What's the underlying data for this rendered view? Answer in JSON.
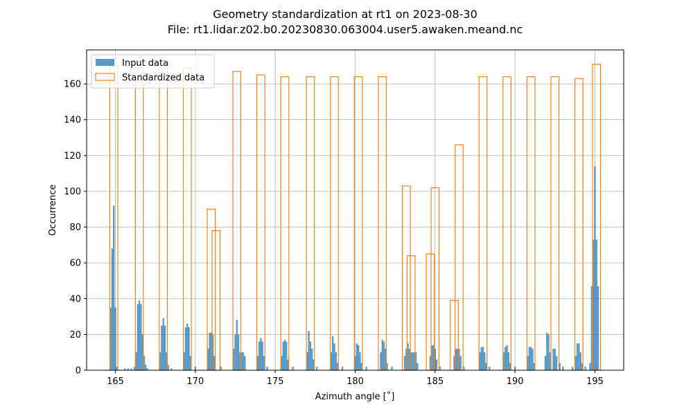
{
  "chart_data": {
    "type": "histogram",
    "title": "Geometry standardization at rt1 on 2023-08-30",
    "subtitle": "File: rt1.lidar.z02.b0.20230830.063004.user5.awaken.meand.nc",
    "xlabel": "Azimuth angle [˚]",
    "ylabel": "Occurrence",
    "xlim": [
      163.2,
      196.8
    ],
    "ylim": [
      0,
      179
    ],
    "xticks": [
      165,
      170,
      175,
      180,
      185,
      190,
      195
    ],
    "yticks": [
      0,
      20,
      40,
      60,
      80,
      100,
      120,
      140,
      160
    ],
    "grid": true,
    "legend_position": "top-left",
    "series": [
      {
        "name": "Input data",
        "style": "filled",
        "color": "#1f77b4",
        "bins": [
          {
            "x": 164.7,
            "y": 35
          },
          {
            "x": 164.8,
            "y": 68
          },
          {
            "x": 164.9,
            "y": 92
          },
          {
            "x": 165.0,
            "y": 35
          },
          {
            "x": 165.1,
            "y": 2
          },
          {
            "x": 165.6,
            "y": 1
          },
          {
            "x": 165.8,
            "y": 1
          },
          {
            "x": 166.0,
            "y": 1
          },
          {
            "x": 166.2,
            "y": 2
          },
          {
            "x": 166.3,
            "y": 10
          },
          {
            "x": 166.4,
            "y": 37
          },
          {
            "x": 166.5,
            "y": 39
          },
          {
            "x": 166.6,
            "y": 37
          },
          {
            "x": 166.7,
            "y": 20
          },
          {
            "x": 166.8,
            "y": 8
          },
          {
            "x": 166.9,
            "y": 3
          },
          {
            "x": 167.0,
            "y": 1
          },
          {
            "x": 167.8,
            "y": 10
          },
          {
            "x": 167.9,
            "y": 25
          },
          {
            "x": 168.0,
            "y": 29
          },
          {
            "x": 168.1,
            "y": 25
          },
          {
            "x": 168.2,
            "y": 10
          },
          {
            "x": 168.3,
            "y": 3
          },
          {
            "x": 168.5,
            "y": 1
          },
          {
            "x": 169.3,
            "y": 10
          },
          {
            "x": 169.4,
            "y": 24
          },
          {
            "x": 169.5,
            "y": 26
          },
          {
            "x": 169.6,
            "y": 24
          },
          {
            "x": 169.7,
            "y": 8
          },
          {
            "x": 170.0,
            "y": 2
          },
          {
            "x": 170.8,
            "y": 12
          },
          {
            "x": 170.9,
            "y": 21
          },
          {
            "x": 171.0,
            "y": 21
          },
          {
            "x": 171.1,
            "y": 20
          },
          {
            "x": 171.2,
            "y": 8
          },
          {
            "x": 171.6,
            "y": 2
          },
          {
            "x": 172.4,
            "y": 12
          },
          {
            "x": 172.5,
            "y": 20
          },
          {
            "x": 172.6,
            "y": 28
          },
          {
            "x": 172.7,
            "y": 20
          },
          {
            "x": 172.8,
            "y": 10
          },
          {
            "x": 172.9,
            "y": 10
          },
          {
            "x": 173.0,
            "y": 10
          },
          {
            "x": 173.1,
            "y": 8
          },
          {
            "x": 173.9,
            "y": 8
          },
          {
            "x": 174.0,
            "y": 16
          },
          {
            "x": 174.1,
            "y": 18
          },
          {
            "x": 174.2,
            "y": 16
          },
          {
            "x": 174.3,
            "y": 8
          },
          {
            "x": 174.5,
            "y": 2
          },
          {
            "x": 175.4,
            "y": 8
          },
          {
            "x": 175.5,
            "y": 16
          },
          {
            "x": 175.6,
            "y": 17
          },
          {
            "x": 175.7,
            "y": 16
          },
          {
            "x": 175.8,
            "y": 6
          },
          {
            "x": 176.1,
            "y": 2
          },
          {
            "x": 177.0,
            "y": 10
          },
          {
            "x": 177.1,
            "y": 22
          },
          {
            "x": 177.2,
            "y": 16
          },
          {
            "x": 177.3,
            "y": 12
          },
          {
            "x": 177.4,
            "y": 6
          },
          {
            "x": 177.6,
            "y": 2
          },
          {
            "x": 178.5,
            "y": 10
          },
          {
            "x": 178.6,
            "y": 19
          },
          {
            "x": 178.7,
            "y": 15
          },
          {
            "x": 178.8,
            "y": 10
          },
          {
            "x": 178.9,
            "y": 4
          },
          {
            "x": 179.2,
            "y": 2
          },
          {
            "x": 180.0,
            "y": 8
          },
          {
            "x": 180.1,
            "y": 15
          },
          {
            "x": 180.2,
            "y": 14
          },
          {
            "x": 180.3,
            "y": 10
          },
          {
            "x": 180.4,
            "y": 4
          },
          {
            "x": 180.7,
            "y": 2
          },
          {
            "x": 181.6,
            "y": 10
          },
          {
            "x": 181.7,
            "y": 17
          },
          {
            "x": 181.8,
            "y": 16
          },
          {
            "x": 181.9,
            "y": 12
          },
          {
            "x": 182.0,
            "y": 4
          },
          {
            "x": 182.3,
            "y": 2
          },
          {
            "x": 183.1,
            "y": 8
          },
          {
            "x": 183.2,
            "y": 12
          },
          {
            "x": 183.3,
            "y": 15
          },
          {
            "x": 183.4,
            "y": 12
          },
          {
            "x": 183.5,
            "y": 10
          },
          {
            "x": 183.6,
            "y": 10
          },
          {
            "x": 183.7,
            "y": 10
          },
          {
            "x": 183.8,
            "y": 10
          },
          {
            "x": 183.9,
            "y": 4
          },
          {
            "x": 184.7,
            "y": 8
          },
          {
            "x": 184.8,
            "y": 14
          },
          {
            "x": 184.9,
            "y": 14
          },
          {
            "x": 185.0,
            "y": 12
          },
          {
            "x": 185.1,
            "y": 6
          },
          {
            "x": 185.3,
            "y": 2
          },
          {
            "x": 186.2,
            "y": 8
          },
          {
            "x": 186.3,
            "y": 12
          },
          {
            "x": 186.4,
            "y": 12
          },
          {
            "x": 186.5,
            "y": 12
          },
          {
            "x": 186.6,
            "y": 8
          },
          {
            "x": 186.8,
            "y": 2
          },
          {
            "x": 187.8,
            "y": 10
          },
          {
            "x": 187.9,
            "y": 13
          },
          {
            "x": 188.0,
            "y": 13
          },
          {
            "x": 188.1,
            "y": 10
          },
          {
            "x": 188.2,
            "y": 4
          },
          {
            "x": 188.4,
            "y": 2
          },
          {
            "x": 189.3,
            "y": 10
          },
          {
            "x": 189.4,
            "y": 13
          },
          {
            "x": 189.5,
            "y": 14
          },
          {
            "x": 189.6,
            "y": 10
          },
          {
            "x": 189.7,
            "y": 4
          },
          {
            "x": 190.0,
            "y": 2
          },
          {
            "x": 190.8,
            "y": 8
          },
          {
            "x": 190.9,
            "y": 13
          },
          {
            "x": 191.0,
            "y": 13
          },
          {
            "x": 191.1,
            "y": 12
          },
          {
            "x": 191.2,
            "y": 4
          },
          {
            "x": 191.9,
            "y": 8
          },
          {
            "x": 192.0,
            "y": 21
          },
          {
            "x": 192.1,
            "y": 20
          },
          {
            "x": 192.2,
            "y": 10
          },
          {
            "x": 192.4,
            "y": 12
          },
          {
            "x": 192.5,
            "y": 12
          },
          {
            "x": 192.6,
            "y": 8
          },
          {
            "x": 192.8,
            "y": 4
          },
          {
            "x": 193.0,
            "y": 2
          },
          {
            "x": 193.6,
            "y": 2
          },
          {
            "x": 193.8,
            "y": 8
          },
          {
            "x": 193.9,
            "y": 15
          },
          {
            "x": 194.0,
            "y": 15
          },
          {
            "x": 194.1,
            "y": 10
          },
          {
            "x": 194.2,
            "y": 4
          },
          {
            "x": 194.4,
            "y": 2
          },
          {
            "x": 194.7,
            "y": 4
          },
          {
            "x": 194.8,
            "y": 47
          },
          {
            "x": 194.9,
            "y": 73
          },
          {
            "x": 195.0,
            "y": 114
          },
          {
            "x": 195.1,
            "y": 73
          },
          {
            "x": 195.2,
            "y": 47
          }
        ]
      },
      {
        "name": "Standardized data",
        "style": "outline",
        "color": "#ff7f0e",
        "bin_width": 0.5,
        "bins": [
          {
            "x": 164.9,
            "y": 170
          },
          {
            "x": 166.5,
            "y": 169
          },
          {
            "x": 168.0,
            "y": 169
          },
          {
            "x": 169.5,
            "y": 169
          },
          {
            "x": 171.0,
            "y": 90
          },
          {
            "x": 171.3,
            "y": 78
          },
          {
            "x": 172.6,
            "y": 167
          },
          {
            "x": 174.1,
            "y": 165
          },
          {
            "x": 175.6,
            "y": 164
          },
          {
            "x": 177.2,
            "y": 164
          },
          {
            "x": 178.7,
            "y": 164
          },
          {
            "x": 180.2,
            "y": 164
          },
          {
            "x": 181.7,
            "y": 164
          },
          {
            "x": 183.2,
            "y": 103
          },
          {
            "x": 183.5,
            "y": 64
          },
          {
            "x": 184.7,
            "y": 65
          },
          {
            "x": 185.0,
            "y": 102
          },
          {
            "x": 186.2,
            "y": 39
          },
          {
            "x": 186.5,
            "y": 126
          },
          {
            "x": 188.0,
            "y": 164
          },
          {
            "x": 189.5,
            "y": 164
          },
          {
            "x": 191.0,
            "y": 164
          },
          {
            "x": 192.5,
            "y": 164
          },
          {
            "x": 194.0,
            "y": 163
          },
          {
            "x": 195.1,
            "y": 171
          }
        ]
      }
    ]
  }
}
